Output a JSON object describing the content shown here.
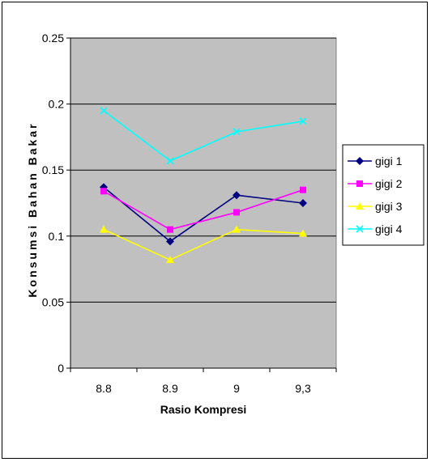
{
  "chart_data": {
    "type": "line",
    "title": "",
    "xlabel": "Rasio Kompresi",
    "ylabel": "Konsumsi Bahan Bakar",
    "categories": [
      "8.8",
      "8.9",
      "9",
      "9,3"
    ],
    "ylim": [
      0,
      0.25
    ],
    "yticks": [
      0,
      0.05,
      0.1,
      0.15,
      0.2,
      0.25
    ],
    "ytick_labels": [
      "0",
      "0.05",
      "0.1",
      "0.15",
      "0.2",
      "0.25"
    ],
    "grid": true,
    "legend_position": "right",
    "plot_background": "#c0c0c0",
    "series": [
      {
        "name": "gigi 1",
        "values": [
          0.137,
          0.096,
          0.131,
          0.125
        ],
        "color": "#000080",
        "marker": "diamond"
      },
      {
        "name": "gigi 2",
        "values": [
          0.134,
          0.105,
          0.118,
          0.135
        ],
        "color": "#ff00ff",
        "marker": "square"
      },
      {
        "name": "gigi 3",
        "values": [
          0.105,
          0.082,
          0.105,
          0.102
        ],
        "color": "#ffff00",
        "marker": "triangle"
      },
      {
        "name": "gigi 4",
        "values": [
          0.195,
          0.157,
          0.179,
          0.187
        ],
        "color": "#00ffff",
        "marker": "x"
      }
    ]
  }
}
